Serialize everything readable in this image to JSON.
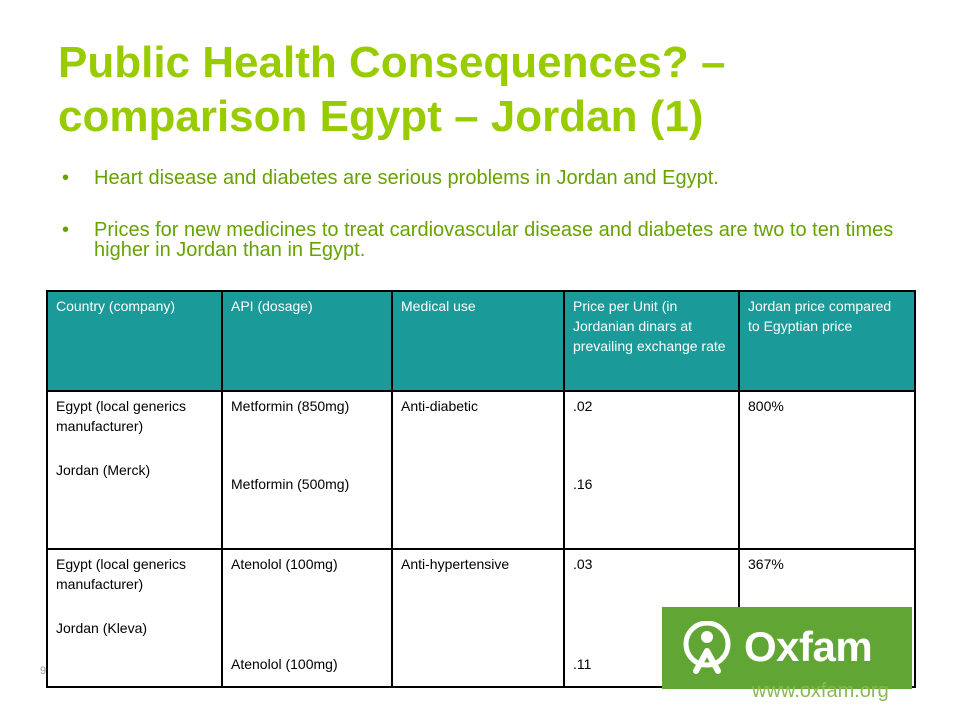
{
  "slide": {
    "title_lines": [
      "Public Health Consequences? –",
      "comparison Egypt – Jordan (1)"
    ],
    "bullets": [
      "Heart disease and diabetes are serious problems in Jordan and Egypt.",
      "Prices for new medicines to treat cardiovascular disease and diabetes are two to ten times higher in Jordan than in Egypt."
    ],
    "bullet_symbol": "•",
    "page_number": "9"
  },
  "table": {
    "headers": [
      "Country (company)",
      "API (dosage)",
      "Medical use",
      "Price per Unit (in Jordanian dinars at prevailing exchange rate",
      "Jordan price compared to Egyptian price"
    ],
    "rows": [
      {
        "country_1": "Egypt (local generics manufacturer)",
        "country_2": "Jordan (Merck)",
        "api_1": "Metformin (850mg)",
        "api_2": "Metformin (500mg)",
        "use": "Anti-diabetic",
        "price_1": ".02",
        "price_2": ".16",
        "ratio": "800%"
      },
      {
        "country_1": "Egypt (local generics manufacturer)",
        "country_2": "Jordan (Kleva)",
        "api_1": "Atenolol (100mg)",
        "api_2": "Atenolol (100mg)",
        "use": "Anti-hypertensive",
        "price_1": ".03",
        "price_2": ".11",
        "ratio": "367%"
      }
    ]
  },
  "logo": {
    "name": "Oxfam",
    "url": "www.oxfam.org",
    "icon": "oxfam-figure-icon"
  },
  "colors": {
    "title": "#99cc00",
    "bullet_text": "#66a300",
    "table_header_bg": "#1b9a9a",
    "logo_bg": "#61a534"
  }
}
